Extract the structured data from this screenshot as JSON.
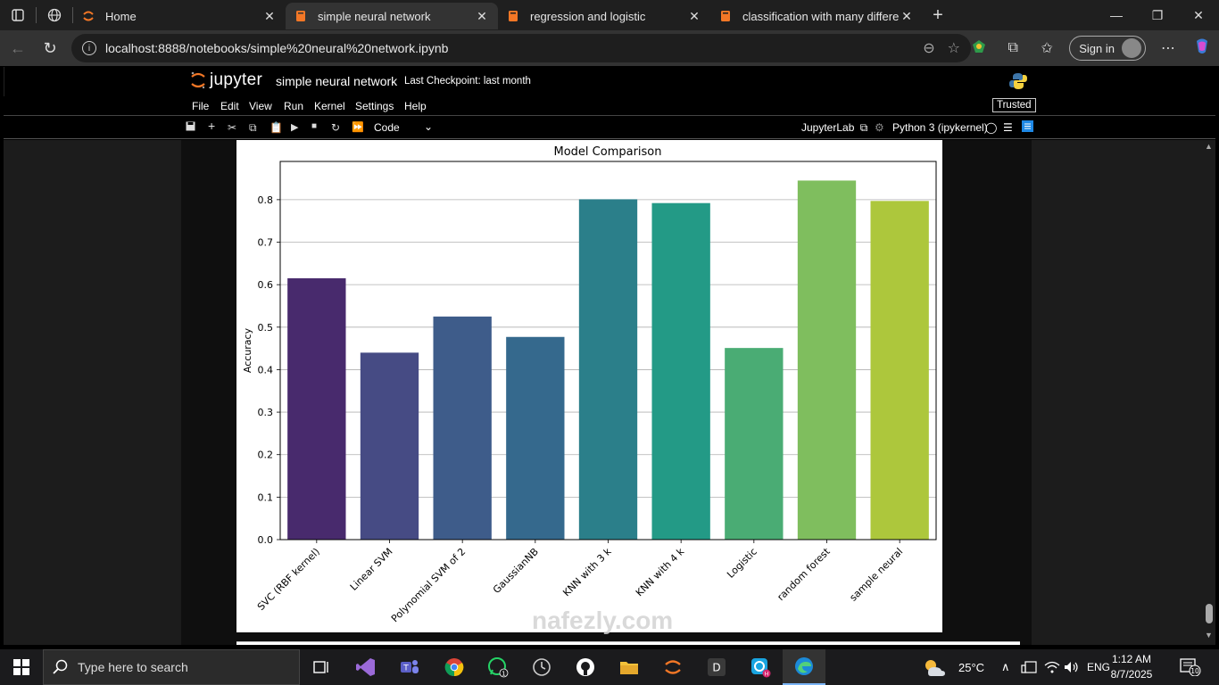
{
  "browser": {
    "tabs": [
      {
        "title": "Home",
        "active": false
      },
      {
        "title": "simple neural network",
        "active": true
      },
      {
        "title": "regression and logistic",
        "active": false
      },
      {
        "title": "classification with many different",
        "active": false
      }
    ],
    "address": "localhost:8888/notebooks/simple%20neural%20network.ipynb",
    "sign_in_label": "Sign in"
  },
  "jupyter": {
    "logo_text": "jupyter",
    "notebook_title": "simple neural network",
    "checkpoint": "Last Checkpoint: last month",
    "menu": [
      "File",
      "Edit",
      "View",
      "Run",
      "Kernel",
      "Settings",
      "Help"
    ],
    "trusted_label": "Trusted",
    "cell_type": "Code",
    "jupyterlab_label": "JupyterLab",
    "kernel_label": "Python 3 (ipykernel)"
  },
  "chart_data": {
    "type": "bar",
    "title": "Model Comparison",
    "xlabel": "",
    "ylabel": "Accuracy",
    "categories": [
      "SVC (RBF kernel)",
      "Linear SVM",
      "Polynomial SVM of 2",
      "GaussianNB",
      "KNN with 3 k",
      "KNN with 4 k",
      "Logistic",
      "random forest",
      "sample neural"
    ],
    "values": [
      0.615,
      0.44,
      0.525,
      0.477,
      0.801,
      0.792,
      0.451,
      0.845,
      0.797
    ],
    "colors": [
      "#482a6d",
      "#464b84",
      "#3e5c8a",
      "#35698d",
      "#2b7f8a",
      "#239a86",
      "#4aac74",
      "#7fbe5e",
      "#adc73c"
    ],
    "yticks": [
      "0.0",
      "0.1",
      "0.2",
      "0.3",
      "0.4",
      "0.5",
      "0.6",
      "0.7",
      "0.8"
    ],
    "ylim": [
      0,
      0.89
    ],
    "grid": "horizontal"
  },
  "taskbar": {
    "search_placeholder": "Type here to search",
    "weather": "25°C",
    "language": "ENG",
    "time": "1:12 AM",
    "date": "8/7/2025",
    "notification_count": "10",
    "whatsapp_badge": "1",
    "dapp_label": "D"
  },
  "watermark": "nafezly.com"
}
